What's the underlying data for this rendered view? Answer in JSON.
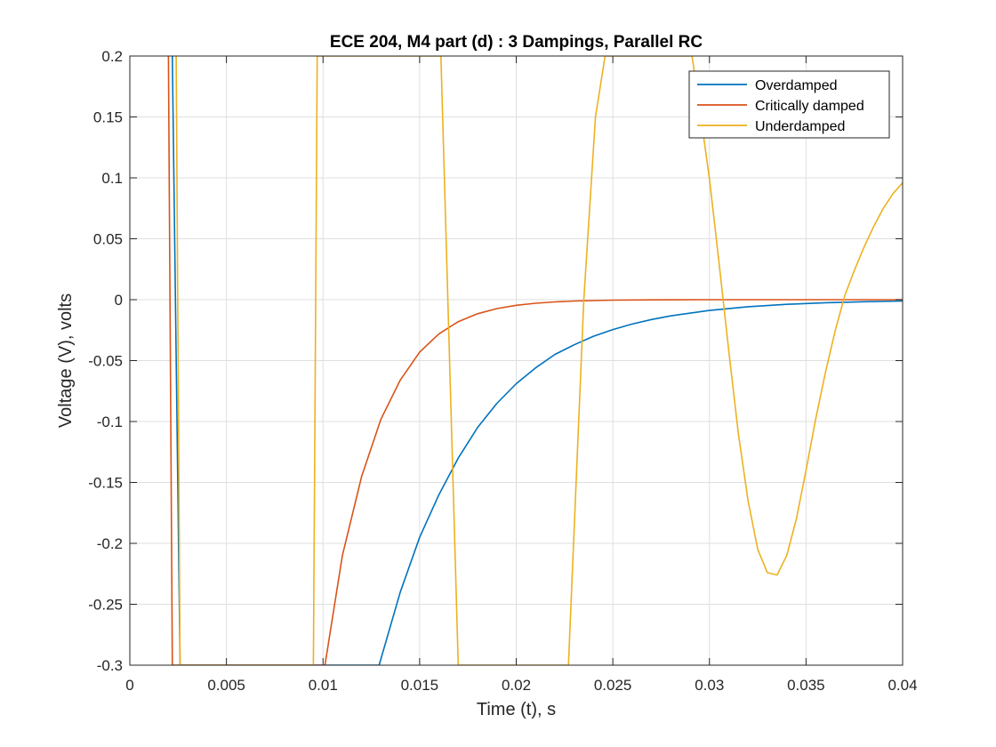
{
  "chart_data": {
    "type": "line",
    "title": "ECE 204, M4 part (d) : 3 Dampings, Parallel RC",
    "xlabel": "Time (t), s",
    "ylabel": "Voltage (V), volts",
    "xlim": [
      0,
      0.04
    ],
    "ylim": [
      -0.3,
      0.2
    ],
    "grid": true,
    "legend_position": "top-right",
    "x_ticks": [
      "0",
      "0.005",
      "0.01",
      "0.015",
      "0.02",
      "0.025",
      "0.03",
      "0.035",
      "0.04"
    ],
    "y_ticks": [
      "0.2",
      "0.15",
      "0.1",
      "0.05",
      "0",
      "-0.05",
      "-0.1",
      "-0.15",
      "-0.2",
      "-0.25",
      "-0.3"
    ],
    "x_tick_values": [
      0,
      0.005,
      0.01,
      0.015,
      0.02,
      0.025,
      0.03,
      0.035,
      0.04
    ],
    "y_tick_values": [
      0.2,
      0.15,
      0.1,
      0.05,
      0,
      -0.05,
      -0.1,
      -0.15,
      -0.2,
      -0.25,
      -0.3
    ],
    "series": [
      {
        "name": "Overdamped",
        "color": "#0072BD",
        "x": [
          0.0022,
          0.0026,
          0.0129,
          0.014,
          0.015,
          0.016,
          0.017,
          0.018,
          0.019,
          0.02,
          0.021,
          0.022,
          0.023,
          0.024,
          0.025,
          0.026,
          0.027,
          0.028,
          0.03,
          0.032,
          0.034,
          0.036,
          0.038,
          0.04
        ],
        "y": [
          0.2,
          -0.3,
          -0.3,
          -0.24,
          -0.195,
          -0.16,
          -0.13,
          -0.105,
          -0.085,
          -0.069,
          -0.056,
          -0.045,
          -0.037,
          -0.03,
          -0.0245,
          -0.02,
          -0.0163,
          -0.0133,
          -0.0088,
          -0.0058,
          -0.0038,
          -0.0025,
          -0.0017,
          -0.0011
        ]
      },
      {
        "name": "Critically damped",
        "color": "#D95319",
        "x": [
          0.002,
          0.0022,
          0.0101,
          0.011,
          0.012,
          0.013,
          0.014,
          0.015,
          0.016,
          0.017,
          0.018,
          0.019,
          0.02,
          0.021,
          0.022,
          0.023,
          0.024,
          0.025,
          0.027,
          0.03,
          0.035,
          0.04
        ],
        "y": [
          0.2,
          -0.3,
          -0.3,
          -0.21,
          -0.145,
          -0.098,
          -0.066,
          -0.043,
          -0.028,
          -0.018,
          -0.0115,
          -0.0073,
          -0.0046,
          -0.0029,
          -0.0018,
          -0.0011,
          -0.0007,
          -0.0004,
          -0.00015,
          0,
          0,
          0
        ]
      },
      {
        "name": "Underdamped",
        "color": "#EDB120",
        "x": [
          0.0024,
          0.0026,
          0.0095,
          0.0097,
          0.0161,
          0.017,
          0.0227,
          0.0235,
          0.0241,
          0.0246,
          0.0291,
          0.0296,
          0.03,
          0.0305,
          0.031,
          0.0315,
          0.032,
          0.0325,
          0.033,
          0.0335,
          0.034,
          0.0345,
          0.035,
          0.0355,
          0.036,
          0.0365,
          0.037,
          0.0375,
          0.038,
          0.0385,
          0.039,
          0.0395,
          0.04
        ],
        "y": [
          0.2,
          -0.3,
          -0.3,
          0.2,
          0.2,
          -0.3,
          -0.3,
          0,
          0.15,
          0.2,
          0.2,
          0.145,
          0.099,
          0.03,
          -0.042,
          -0.11,
          -0.165,
          -0.205,
          -0.224,
          -0.226,
          -0.21,
          -0.18,
          -0.14,
          -0.098,
          -0.06,
          -0.026,
          0.003,
          0.024,
          0.043,
          0.06,
          0.075,
          0.087,
          0.096
        ]
      }
    ]
  }
}
